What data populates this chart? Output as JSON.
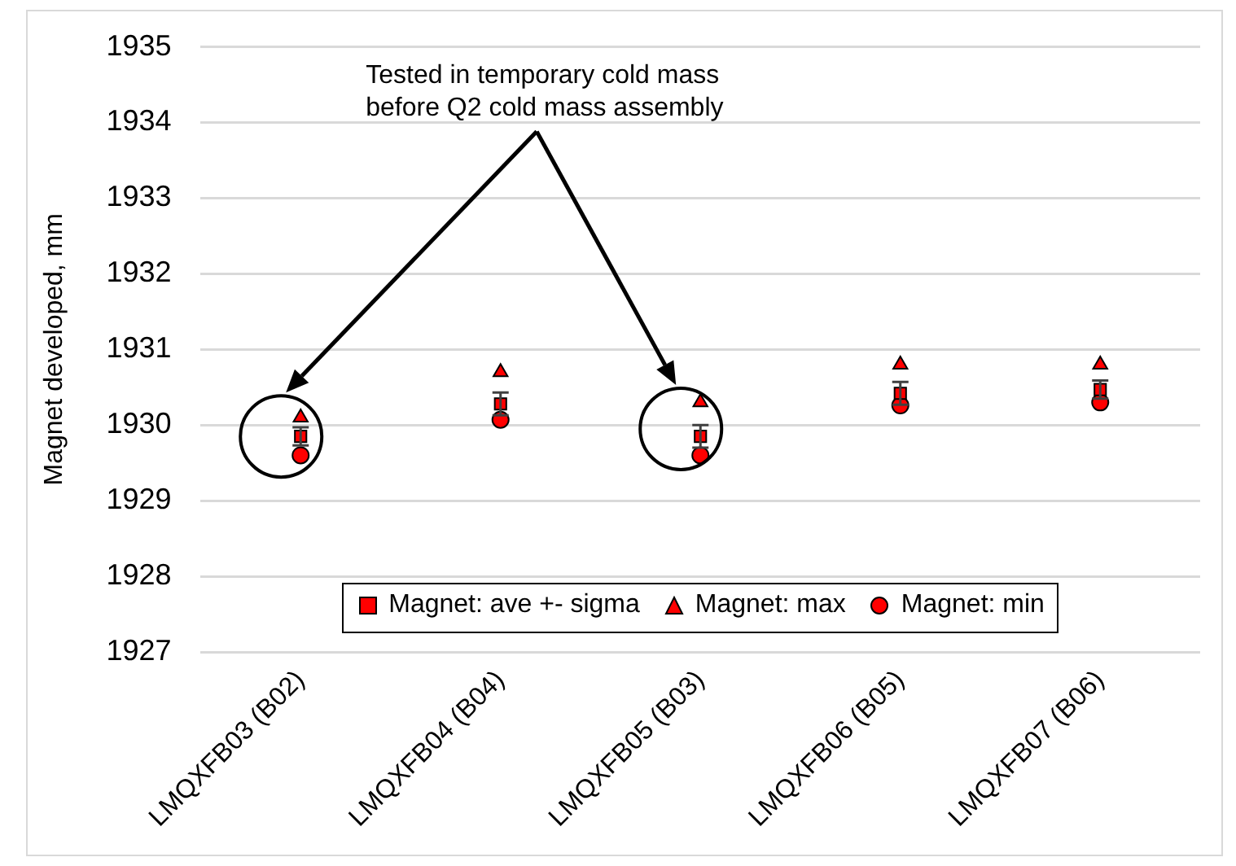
{
  "chart_data": {
    "type": "scatter",
    "ylabel": "Magnet developed, mm",
    "annotations": [
      "Tested in temporary cold mass\nbefore Q2 cold mass assembly"
    ],
    "categories": [
      "LMQXFB03 (B02)",
      "LMQXFB04 (B04)",
      "LMQXFB05 (B03)",
      "LMQXFB06 (B05)",
      "LMQXFB07 (B06)"
    ],
    "series": [
      {
        "name": "Magnet: ave +- sigma",
        "color": "#ff0000",
        "marker": "square",
        "values": [
          1929.85,
          1930.28,
          1929.85,
          1930.42,
          1930.47
        ],
        "errors": [
          0.12,
          0.15,
          0.15,
          0.15,
          0.12
        ]
      },
      {
        "name": "Magnet: max",
        "color": "#ff0000",
        "marker": "triangle",
        "values": [
          1930.1,
          1930.7,
          1930.3,
          1930.8,
          1930.8
        ]
      },
      {
        "name": "Magnet: min",
        "color": "#ff0000",
        "marker": "circle",
        "values": [
          1929.6,
          1930.07,
          1929.6,
          1930.26,
          1930.3
        ]
      }
    ],
    "ylim": [
      1927,
      1935
    ],
    "yticks": [
      1927,
      1928,
      1929,
      1930,
      1931,
      1932,
      1933,
      1934,
      1935
    ],
    "grid": "y",
    "legend": "bottom"
  }
}
